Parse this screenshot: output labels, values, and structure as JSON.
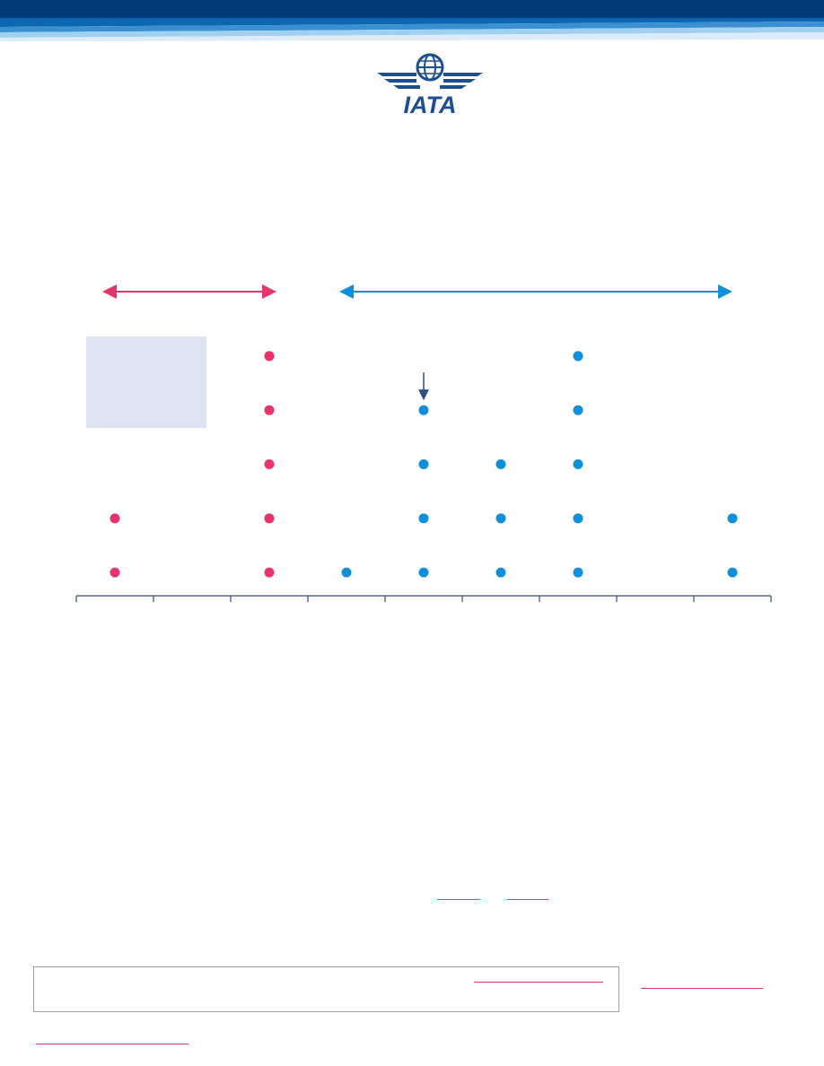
{
  "header": {
    "logo_text": "IATA",
    "colors": {
      "dark": "#003c7a",
      "mid": "#0a67b0",
      "light": "#9fd0ef",
      "pale": "#dcebf6"
    }
  },
  "chart_data": {
    "type": "scatter",
    "title": "",
    "xlabel": "",
    "ylabel": "",
    "x_slots": 9,
    "y_levels": 5,
    "series": [
      {
        "color": "#e8336b",
        "points": [
          [
            1,
            1
          ],
          [
            1,
            2
          ],
          [
            3,
            1
          ],
          [
            3,
            2
          ],
          [
            3,
            3
          ],
          [
            3,
            4
          ],
          [
            3,
            5
          ]
        ]
      },
      {
        "color": "#0f8fd8",
        "points": [
          [
            4,
            1
          ],
          [
            5,
            1
          ],
          [
            5,
            2
          ],
          [
            5,
            3
          ],
          [
            5,
            4
          ],
          [
            6,
            1
          ],
          [
            6,
            2
          ],
          [
            6,
            3
          ],
          [
            7,
            1
          ],
          [
            7,
            2
          ],
          [
            7,
            3
          ],
          [
            7,
            4
          ],
          [
            7,
            5
          ],
          [
            9,
            1
          ],
          [
            9,
            2
          ]
        ]
      }
    ],
    "range_arrows": [
      {
        "color": "#e8336b",
        "from_slot": 1,
        "to_slot": 3
      },
      {
        "color": "#0f8fd8",
        "from_slot": 4,
        "to_slot": 9
      }
    ],
    "marker_arrow": {
      "slot": 5,
      "level": 4,
      "color": "#2d5080"
    },
    "shaded_region": {
      "from_slot": 1,
      "to_slot": 2,
      "levels": [
        4,
        5
      ],
      "color": "#dbe4f0"
    },
    "grid": false,
    "legend": "none"
  },
  "footer": {
    "link_color": "#e8336b",
    "border_color": "#9aa0a6"
  }
}
